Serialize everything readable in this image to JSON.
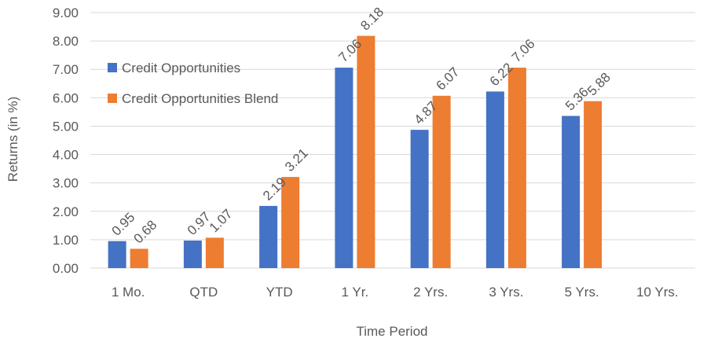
{
  "chart_data": {
    "type": "bar",
    "title": "",
    "xlabel": "Time Period",
    "ylabel": "Returns (in %)",
    "ylim": [
      0,
      9
    ],
    "yticks": [
      "0.00",
      "1.00",
      "2.00",
      "3.00",
      "4.00",
      "5.00",
      "6.00",
      "7.00",
      "8.00",
      "9.00"
    ],
    "grid": true,
    "legend_position": "left",
    "categories": [
      "1 Mo.",
      "QTD",
      "YTD",
      "1 Yr.",
      "2 Yrs.",
      "3 Yrs.",
      "5 Yrs.",
      "10 Yrs."
    ],
    "series": [
      {
        "name": "Credit Opportunities",
        "color": "#4472C4",
        "values": [
          0.95,
          0.97,
          2.19,
          7.06,
          4.87,
          6.22,
          5.36,
          null
        ],
        "labels": [
          "0.95",
          "0.97",
          "2.19",
          "7.06",
          "4.87",
          "6.22",
          "5.36",
          ""
        ]
      },
      {
        "name": "Credit Opportunities Blend",
        "color": "#ED7D31",
        "values": [
          0.68,
          1.07,
          3.21,
          8.18,
          6.07,
          7.06,
          5.88,
          null
        ],
        "labels": [
          "0.68",
          "1.07",
          "3.21",
          "8.18",
          "6.07",
          "7.06",
          "5.88",
          ""
        ]
      }
    ]
  }
}
